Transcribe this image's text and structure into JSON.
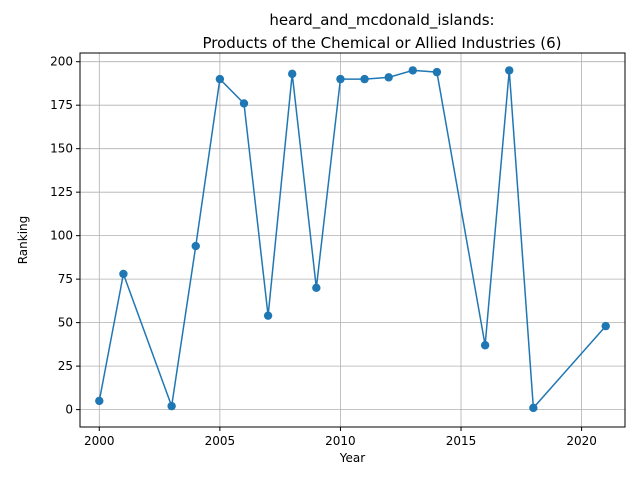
{
  "chart_data": {
    "type": "line",
    "title_line1": "heard_and_mcdonald_islands:",
    "title_line2": "Products of the Chemical or Allied Industries (6)",
    "xlabel": "Year",
    "ylabel": "Ranking",
    "xlim": [
      1999.2,
      2021.8
    ],
    "ylim": [
      -10,
      205
    ],
    "xticks": [
      2000,
      2005,
      2010,
      2015,
      2020
    ],
    "yticks": [
      0,
      25,
      50,
      75,
      100,
      125,
      150,
      175,
      200
    ],
    "grid": true,
    "line_color": "#1f77b4",
    "series": [
      {
        "x": [
          2000,
          2001,
          2003,
          2004,
          2005,
          2006,
          2007,
          2008,
          2009,
          2010,
          2011,
          2012,
          2013,
          2014,
          2016,
          2017,
          2018,
          2021
        ],
        "y": [
          5,
          78,
          2,
          94,
          190,
          176,
          54,
          193,
          70,
          190,
          190,
          191,
          195,
          194,
          37,
          195,
          1,
          48
        ]
      }
    ]
  }
}
